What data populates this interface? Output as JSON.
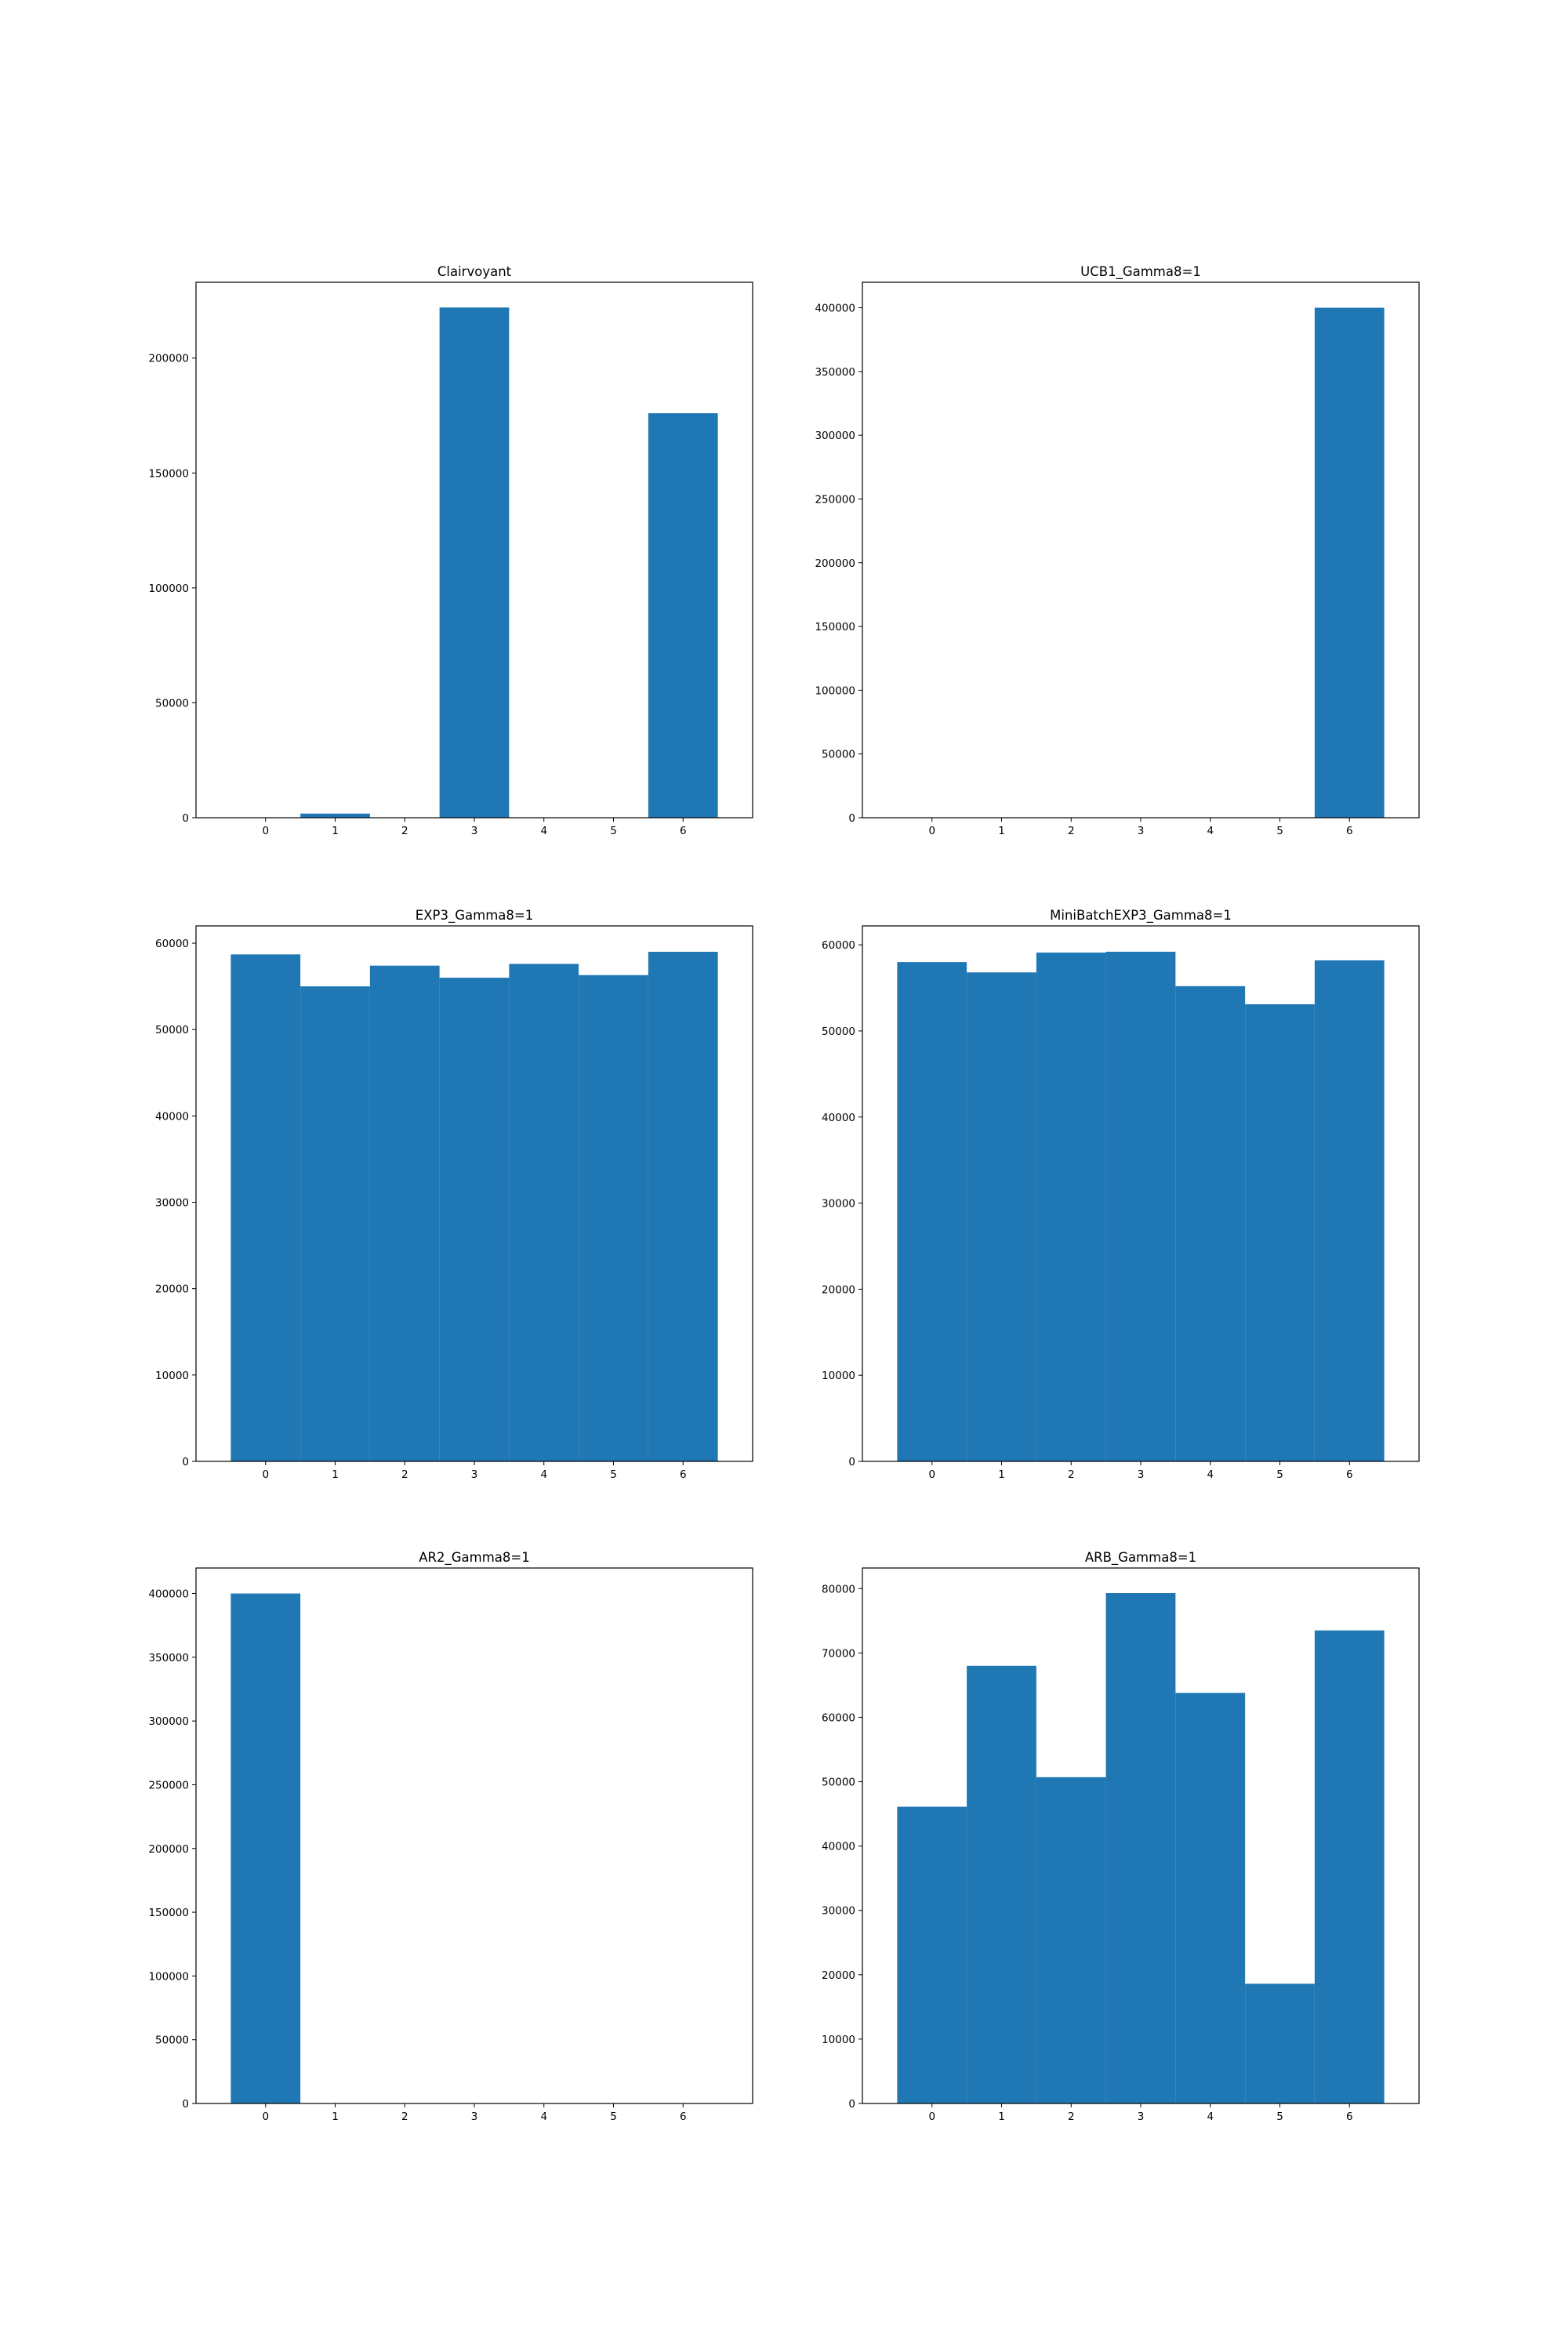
{
  "figure": {
    "background": "#ffffff",
    "bar_color": "#1f77b4",
    "axes_color": "#000000"
  },
  "chart_data": [
    {
      "type": "bar",
      "title": "Clairvoyant",
      "categories": [
        "0",
        "1",
        "2",
        "3",
        "4",
        "5",
        "6"
      ],
      "values": [
        0,
        1800,
        0,
        222000,
        0,
        0,
        176000
      ],
      "xlabel": "",
      "ylabel": "",
      "xlim": [
        -1,
        7
      ],
      "ylim": [
        0,
        233000
      ],
      "yticks": [
        0,
        50000,
        100000,
        150000,
        200000
      ],
      "grid": false
    },
    {
      "type": "bar",
      "title": "UCB1_Gamma8=1",
      "categories": [
        "0",
        "1",
        "2",
        "3",
        "4",
        "5",
        "6"
      ],
      "values": [
        0,
        0,
        0,
        0,
        0,
        0,
        400000
      ],
      "xlabel": "",
      "ylabel": "",
      "xlim": [
        -1,
        7
      ],
      "ylim": [
        0,
        420000
      ],
      "yticks": [
        0,
        50000,
        100000,
        150000,
        200000,
        250000,
        300000,
        350000,
        400000
      ],
      "grid": false
    },
    {
      "type": "bar",
      "title": "EXP3_Gamma8=1",
      "categories": [
        "0",
        "1",
        "2",
        "3",
        "4",
        "5",
        "6"
      ],
      "values": [
        58700,
        55000,
        57400,
        56000,
        57600,
        56300,
        59000
      ],
      "xlabel": "",
      "ylabel": "",
      "xlim": [
        -1,
        7
      ],
      "ylim": [
        0,
        62000
      ],
      "yticks": [
        0,
        10000,
        20000,
        30000,
        40000,
        50000,
        60000
      ],
      "grid": false
    },
    {
      "type": "bar",
      "title": "MiniBatchEXP3_Gamma8=1",
      "categories": [
        "0",
        "1",
        "2",
        "3",
        "4",
        "5",
        "6"
      ],
      "values": [
        58000,
        56800,
        59100,
        59200,
        55200,
        53100,
        58200
      ],
      "xlabel": "",
      "ylabel": "",
      "xlim": [
        -1,
        7
      ],
      "ylim": [
        0,
        62200
      ],
      "yticks": [
        0,
        10000,
        20000,
        30000,
        40000,
        50000,
        60000
      ],
      "grid": false
    },
    {
      "type": "bar",
      "title": "AR2_Gamma8=1",
      "categories": [
        "0",
        "1",
        "2",
        "3",
        "4",
        "5",
        "6"
      ],
      "values": [
        400000,
        0,
        0,
        0,
        0,
        0,
        0
      ],
      "xlabel": "",
      "ylabel": "",
      "xlim": [
        -1,
        7
      ],
      "ylim": [
        0,
        420000
      ],
      "yticks": [
        0,
        50000,
        100000,
        150000,
        200000,
        250000,
        300000,
        350000,
        400000
      ],
      "grid": false
    },
    {
      "type": "bar",
      "title": "ARB_Gamma8=1",
      "categories": [
        "0",
        "1",
        "2",
        "3",
        "4",
        "5",
        "6"
      ],
      "values": [
        46100,
        68000,
        50700,
        79300,
        63800,
        18600,
        73500
      ],
      "xlabel": "",
      "ylabel": "",
      "xlim": [
        -1,
        7
      ],
      "ylim": [
        0,
        83200
      ],
      "yticks": [
        0,
        10000,
        20000,
        30000,
        40000,
        50000,
        60000,
        70000,
        80000
      ],
      "grid": false
    }
  ]
}
